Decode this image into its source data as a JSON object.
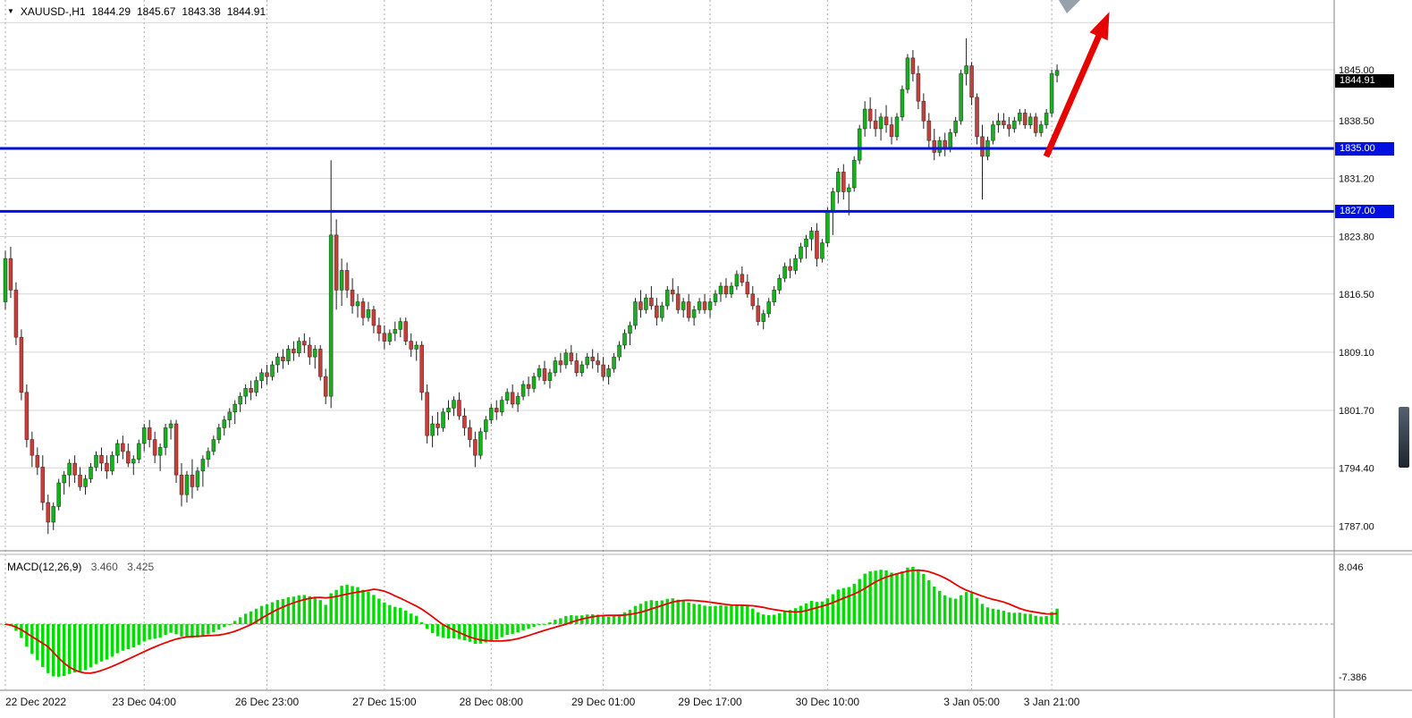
{
  "colors": {
    "up": "#17b01e",
    "down": "#c5403a",
    "wick": "#1f1f1f",
    "grid_h": "#d6d6d6",
    "grid_v": "#a9a9a9",
    "hline": "#0010e0",
    "arrow": "#e60400",
    "macd_hist": "#00dc00",
    "macd_signal": "#e60400",
    "axis_text": "#111111",
    "border": "#808080"
  },
  "header": {
    "dropdown_icon": "▼",
    "symbol": "XAUUSD-,H1",
    "open": "1844.29",
    "high": "1845.67",
    "low": "1843.38",
    "close": "1844.91"
  },
  "price_axis": {
    "labels": [
      "1845.00",
      "1838.50",
      "1831.20",
      "1823.80",
      "1816.50",
      "1809.10",
      "1801.70",
      "1794.40",
      "1787.00"
    ],
    "current": "1844.91"
  },
  "hlines": [
    {
      "price": 1835.0,
      "label": "1835.00"
    },
    {
      "price": 1827.0,
      "label": "1827.00"
    }
  ],
  "time_axis": {
    "labels": [
      "22 Dec 2022",
      "23 Dec 04:00",
      "26 Dec 23:00",
      "27 Dec 15:00",
      "28 Dec 08:00",
      "29 Dec 01:00",
      "29 Dec 17:00",
      "30 Dec 10:00",
      "3 Jan 05:00",
      "3 Jan 21:00"
    ],
    "tick_indices": [
      0,
      26,
      49,
      71,
      91,
      112,
      132,
      154,
      181,
      196
    ]
  },
  "macd_panel": {
    "title": "MACD(12,26,9)",
    "main_value": "3.460",
    "signal_value": "3.425",
    "axis_top": "8.046",
    "axis_bottom": "-7.386",
    "params": [
      12,
      26,
      9
    ]
  },
  "chart_data": {
    "type": "candlestick",
    "symbol": "XAUUSD",
    "timeframe": "H1",
    "ylim": [
      1784.0,
      1852.5
    ],
    "grid": true,
    "price_grid": [
      1851.0,
      1845.0,
      1838.5,
      1831.2,
      1823.8,
      1816.5,
      1809.1,
      1801.7,
      1794.4,
      1787.0
    ],
    "indicator": {
      "name": "MACD",
      "params": [
        12,
        26,
        9
      ],
      "main": 3.46,
      "signal": 3.425,
      "range": [
        -7.386,
        8.046
      ]
    },
    "annotations": {
      "arrow": {
        "type": "arrow-up",
        "color": "#e60400",
        "from": [
          1170,
          175
        ],
        "to": [
          1235,
          26
        ]
      },
      "support_resistance": [
        1835.0,
        1827.0
      ]
    },
    "candles": [
      [
        1815.5,
        1822.0,
        1814.5,
        1821.0
      ],
      [
        1821.0,
        1822.5,
        1816.0,
        1817.0
      ],
      [
        1817.0,
        1818.0,
        1810.0,
        1811.0
      ],
      [
        1811.0,
        1812.0,
        1803.0,
        1804.0
      ],
      [
        1804.0,
        1805.0,
        1797.0,
        1798.0
      ],
      [
        1798.0,
        1799.0,
        1794.5,
        1796.0
      ],
      [
        1796.0,
        1797.0,
        1793.5,
        1794.5
      ],
      [
        1794.5,
        1796.0,
        1789.0,
        1790.0
      ],
      [
        1790.0,
        1791.0,
        1786.0,
        1787.5
      ],
      [
        1787.5,
        1790.0,
        1786.5,
        1789.5
      ],
      [
        1789.5,
        1793.0,
        1789.0,
        1792.5
      ],
      [
        1792.5,
        1794.0,
        1791.0,
        1793.5
      ],
      [
        1793.5,
        1795.5,
        1792.0,
        1795.0
      ],
      [
        1795.0,
        1796.0,
        1792.5,
        1793.5
      ],
      [
        1793.5,
        1794.5,
        1791.5,
        1792.0
      ],
      [
        1792.0,
        1793.5,
        1791.0,
        1793.0
      ],
      [
        1793.0,
        1795.0,
        1792.5,
        1794.5
      ],
      [
        1794.5,
        1796.5,
        1794.0,
        1796.0
      ],
      [
        1796.0,
        1797.0,
        1794.0,
        1795.0
      ],
      [
        1795.0,
        1796.0,
        1793.0,
        1794.0
      ],
      [
        1794.0,
        1796.5,
        1793.5,
        1796.0
      ],
      [
        1796.0,
        1798.0,
        1795.0,
        1797.5
      ],
      [
        1797.5,
        1798.5,
        1795.5,
        1796.5
      ],
      [
        1796.5,
        1797.5,
        1794.5,
        1795.0
      ],
      [
        1795.0,
        1796.0,
        1793.5,
        1795.5
      ],
      [
        1795.5,
        1798.0,
        1795.0,
        1797.5
      ],
      [
        1797.5,
        1800.0,
        1796.5,
        1799.5
      ],
      [
        1799.5,
        1800.5,
        1797.0,
        1798.0
      ],
      [
        1798.0,
        1799.0,
        1795.0,
        1796.0
      ],
      [
        1796.0,
        1797.5,
        1794.0,
        1797.0
      ],
      [
        1797.0,
        1800.0,
        1796.0,
        1799.5
      ],
      [
        1799.5,
        1800.5,
        1798.0,
        1800.0
      ],
      [
        1800.0,
        1800.5,
        1792.5,
        1793.5
      ],
      [
        1793.5,
        1795.0,
        1789.5,
        1791.0
      ],
      [
        1791.0,
        1794.0,
        1790.0,
        1793.5
      ],
      [
        1793.5,
        1795.5,
        1790.5,
        1792.0
      ],
      [
        1792.0,
        1794.5,
        1791.5,
        1794.0
      ],
      [
        1794.0,
        1796.0,
        1792.0,
        1795.5
      ],
      [
        1795.5,
        1797.0,
        1794.5,
        1796.5
      ],
      [
        1796.5,
        1798.5,
        1796.0,
        1798.0
      ],
      [
        1798.0,
        1800.0,
        1797.5,
        1799.5
      ],
      [
        1799.5,
        1801.0,
        1798.5,
        1800.5
      ],
      [
        1800.5,
        1802.0,
        1799.5,
        1801.5
      ],
      [
        1801.5,
        1803.0,
        1800.0,
        1802.5
      ],
      [
        1802.5,
        1804.0,
        1801.5,
        1803.5
      ],
      [
        1803.5,
        1805.0,
        1802.5,
        1804.5
      ],
      [
        1804.5,
        1805.5,
        1803.0,
        1804.0
      ],
      [
        1804.0,
        1806.0,
        1803.5,
        1805.5
      ],
      [
        1805.5,
        1807.0,
        1804.5,
        1806.5
      ],
      [
        1806.5,
        1807.5,
        1805.0,
        1806.0
      ],
      [
        1806.0,
        1808.0,
        1805.5,
        1807.5
      ],
      [
        1807.5,
        1809.0,
        1806.5,
        1808.5
      ],
      [
        1808.5,
        1809.5,
        1807.0,
        1808.0
      ],
      [
        1808.0,
        1810.0,
        1807.5,
        1809.5
      ],
      [
        1809.5,
        1810.5,
        1808.0,
        1809.0
      ],
      [
        1809.0,
        1811.0,
        1808.5,
        1810.5
      ],
      [
        1810.5,
        1811.5,
        1809.0,
        1810.0
      ],
      [
        1810.0,
        1811.0,
        1807.5,
        1808.5
      ],
      [
        1808.5,
        1810.0,
        1807.0,
        1809.5
      ],
      [
        1809.5,
        1810.0,
        1805.5,
        1806.0
      ],
      [
        1806.0,
        1807.0,
        1802.5,
        1803.5
      ],
      [
        1803.5,
        1833.5,
        1802.0,
        1824.0
      ],
      [
        1824.0,
        1826.0,
        1814.5,
        1817.0
      ],
      [
        1817.0,
        1821.0,
        1815.0,
        1819.5
      ],
      [
        1819.5,
        1820.5,
        1816.0,
        1817.0
      ],
      [
        1817.0,
        1818.5,
        1814.0,
        1815.0
      ],
      [
        1815.0,
        1816.5,
        1813.5,
        1815.5
      ],
      [
        1815.5,
        1816.0,
        1812.5,
        1813.5
      ],
      [
        1813.5,
        1815.5,
        1813.0,
        1814.5
      ],
      [
        1814.5,
        1815.0,
        1811.5,
        1812.5
      ],
      [
        1812.5,
        1813.5,
        1810.5,
        1811.5
      ],
      [
        1811.5,
        1812.5,
        1809.5,
        1810.5
      ],
      [
        1810.5,
        1812.0,
        1810.0,
        1811.5
      ],
      [
        1811.5,
        1813.0,
        1810.5,
        1812.0
      ],
      [
        1812.0,
        1813.5,
        1811.0,
        1813.0
      ],
      [
        1813.0,
        1813.5,
        1810.0,
        1810.5
      ],
      [
        1810.5,
        1811.5,
        1808.5,
        1809.5
      ],
      [
        1809.5,
        1810.5,
        1808.0,
        1810.0
      ],
      [
        1810.0,
        1810.5,
        1803.0,
        1804.0
      ],
      [
        1804.0,
        1805.0,
        1797.5,
        1798.5
      ],
      [
        1798.5,
        1801.0,
        1797.0,
        1800.0
      ],
      [
        1800.0,
        1801.5,
        1798.5,
        1799.5
      ],
      [
        1799.5,
        1802.0,
        1799.0,
        1801.5
      ],
      [
        1801.5,
        1803.0,
        1800.5,
        1802.0
      ],
      [
        1802.0,
        1803.5,
        1801.0,
        1803.0
      ],
      [
        1803.0,
        1804.0,
        1800.5,
        1801.0
      ],
      [
        1801.0,
        1802.0,
        1798.5,
        1799.5
      ],
      [
        1799.5,
        1800.5,
        1797.0,
        1798.0
      ],
      [
        1798.0,
        1799.0,
        1794.5,
        1796.0
      ],
      [
        1796.0,
        1799.5,
        1795.5,
        1799.0
      ],
      [
        1799.0,
        1801.0,
        1798.0,
        1800.5
      ],
      [
        1800.5,
        1802.5,
        1800.0,
        1802.0
      ],
      [
        1802.0,
        1803.0,
        1800.5,
        1801.5
      ],
      [
        1801.5,
        1803.5,
        1801.0,
        1803.0
      ],
      [
        1803.0,
        1804.5,
        1802.5,
        1804.0
      ],
      [
        1804.0,
        1805.0,
        1802.0,
        1802.5
      ],
      [
        1802.5,
        1804.0,
        1801.5,
        1803.5
      ],
      [
        1803.5,
        1805.5,
        1803.0,
        1805.0
      ],
      [
        1805.0,
        1806.0,
        1803.5,
        1804.5
      ],
      [
        1804.5,
        1806.5,
        1804.0,
        1806.0
      ],
      [
        1806.0,
        1807.5,
        1805.5,
        1807.0
      ],
      [
        1807.0,
        1808.0,
        1805.0,
        1805.5
      ],
      [
        1805.5,
        1807.0,
        1804.5,
        1806.5
      ],
      [
        1806.5,
        1808.5,
        1806.0,
        1808.0
      ],
      [
        1808.0,
        1809.0,
        1806.5,
        1807.5
      ],
      [
        1807.5,
        1809.5,
        1807.0,
        1809.0
      ],
      [
        1809.0,
        1810.0,
        1807.5,
        1808.0
      ],
      [
        1808.0,
        1809.0,
        1806.0,
        1806.5
      ],
      [
        1806.5,
        1808.0,
        1806.0,
        1807.5
      ],
      [
        1807.5,
        1809.0,
        1807.0,
        1808.5
      ],
      [
        1808.5,
        1809.5,
        1807.0,
        1808.0
      ],
      [
        1808.0,
        1809.0,
        1806.5,
        1807.5
      ],
      [
        1807.5,
        1808.5,
        1805.5,
        1806.0
      ],
      [
        1806.0,
        1807.5,
        1805.0,
        1807.0
      ],
      [
        1807.0,
        1809.0,
        1806.5,
        1808.5
      ],
      [
        1808.5,
        1810.5,
        1808.0,
        1810.0
      ],
      [
        1810.0,
        1812.0,
        1809.5,
        1811.5
      ],
      [
        1811.5,
        1813.0,
        1810.0,
        1812.5
      ],
      [
        1812.5,
        1816.0,
        1812.0,
        1815.5
      ],
      [
        1815.5,
        1817.0,
        1813.5,
        1814.5
      ],
      [
        1814.5,
        1816.5,
        1814.0,
        1816.0
      ],
      [
        1816.0,
        1817.5,
        1814.5,
        1815.0
      ],
      [
        1815.0,
        1816.0,
        1812.5,
        1813.5
      ],
      [
        1813.5,
        1815.5,
        1813.0,
        1815.0
      ],
      [
        1815.0,
        1817.5,
        1814.5,
        1817.0
      ],
      [
        1817.0,
        1818.5,
        1815.5,
        1816.5
      ],
      [
        1816.5,
        1817.5,
        1814.0,
        1814.5
      ],
      [
        1814.5,
        1816.0,
        1813.5,
        1815.5
      ],
      [
        1815.5,
        1816.5,
        1813.0,
        1813.5
      ],
      [
        1813.5,
        1815.0,
        1812.5,
        1814.5
      ],
      [
        1814.5,
        1816.0,
        1814.0,
        1815.5
      ],
      [
        1815.5,
        1816.5,
        1814.0,
        1814.5
      ],
      [
        1814.5,
        1816.0,
        1813.5,
        1815.5
      ],
      [
        1815.5,
        1817.0,
        1815.0,
        1816.5
      ],
      [
        1816.5,
        1818.0,
        1815.5,
        1817.5
      ],
      [
        1817.5,
        1818.5,
        1816.0,
        1816.5
      ],
      [
        1816.5,
        1818.0,
        1816.0,
        1817.5
      ],
      [
        1817.5,
        1819.5,
        1817.0,
        1819.0
      ],
      [
        1819.0,
        1820.0,
        1817.5,
        1818.0
      ],
      [
        1818.0,
        1819.0,
        1816.0,
        1816.5
      ],
      [
        1816.5,
        1817.5,
        1814.5,
        1815.0
      ],
      [
        1815.0,
        1816.0,
        1812.5,
        1813.0
      ],
      [
        1813.0,
        1814.5,
        1812.0,
        1814.0
      ],
      [
        1814.0,
        1816.0,
        1813.5,
        1815.5
      ],
      [
        1815.5,
        1817.5,
        1815.0,
        1817.0
      ],
      [
        1817.0,
        1819.0,
        1816.5,
        1818.5
      ],
      [
        1818.5,
        1820.5,
        1818.0,
        1820.0
      ],
      [
        1820.0,
        1821.0,
        1818.5,
        1819.5
      ],
      [
        1819.5,
        1821.5,
        1819.0,
        1821.0
      ],
      [
        1821.0,
        1823.0,
        1820.5,
        1822.5
      ],
      [
        1822.5,
        1824.0,
        1821.0,
        1823.5
      ],
      [
        1823.5,
        1825.0,
        1822.0,
        1824.5
      ],
      [
        1824.5,
        1825.5,
        1820.0,
        1821.0
      ],
      [
        1821.0,
        1823.5,
        1820.5,
        1823.0
      ],
      [
        1823.0,
        1827.5,
        1822.5,
        1827.0
      ],
      [
        1827.0,
        1830.0,
        1824.0,
        1829.5
      ],
      [
        1829.5,
        1832.5,
        1828.0,
        1832.0
      ],
      [
        1832.0,
        1833.0,
        1828.5,
        1829.5
      ],
      [
        1829.5,
        1830.5,
        1826.5,
        1830.0
      ],
      [
        1830.0,
        1834.0,
        1829.5,
        1833.5
      ],
      [
        1833.5,
        1838.0,
        1833.0,
        1837.5
      ],
      [
        1837.5,
        1841.0,
        1836.5,
        1840.0
      ],
      [
        1840.0,
        1841.5,
        1837.5,
        1838.5
      ],
      [
        1838.5,
        1840.0,
        1836.5,
        1837.5
      ],
      [
        1837.5,
        1839.5,
        1836.0,
        1839.0
      ],
      [
        1839.0,
        1840.5,
        1837.0,
        1838.0
      ],
      [
        1838.0,
        1839.0,
        1835.5,
        1836.5
      ],
      [
        1836.5,
        1839.5,
        1836.0,
        1839.0
      ],
      [
        1839.0,
        1843.0,
        1838.5,
        1842.5
      ],
      [
        1842.5,
        1847.0,
        1842.0,
        1846.5
      ],
      [
        1846.5,
        1847.5,
        1843.5,
        1844.5
      ],
      [
        1844.5,
        1845.5,
        1840.0,
        1841.0
      ],
      [
        1841.0,
        1842.0,
        1837.5,
        1838.5
      ],
      [
        1838.5,
        1839.5,
        1835.0,
        1836.0
      ],
      [
        1836.0,
        1837.5,
        1833.5,
        1834.5
      ],
      [
        1834.5,
        1836.5,
        1834.0,
        1836.0
      ],
      [
        1836.0,
        1837.0,
        1834.0,
        1835.0
      ],
      [
        1835.0,
        1837.5,
        1834.5,
        1837.0
      ],
      [
        1837.0,
        1839.0,
        1836.5,
        1838.5
      ],
      [
        1838.5,
        1845.0,
        1838.0,
        1844.5
      ],
      [
        1844.5,
        1849.0,
        1843.0,
        1845.5
      ],
      [
        1845.5,
        1846.0,
        1840.5,
        1841.5
      ],
      [
        1841.5,
        1842.0,
        1835.5,
        1836.5
      ],
      [
        1836.5,
        1838.0,
        1828.5,
        1834.0
      ],
      [
        1834.0,
        1836.5,
        1833.5,
        1836.0
      ],
      [
        1836.0,
        1838.5,
        1835.5,
        1838.0
      ],
      [
        1838.0,
        1839.5,
        1837.0,
        1838.5
      ],
      [
        1838.5,
        1839.5,
        1837.5,
        1838.0
      ],
      [
        1838.0,
        1839.0,
        1836.5,
        1837.5
      ],
      [
        1837.5,
        1839.0,
        1837.0,
        1838.5
      ],
      [
        1838.5,
        1840.0,
        1838.0,
        1839.5
      ],
      [
        1839.5,
        1840.0,
        1837.5,
        1838.0
      ],
      [
        1838.0,
        1839.5,
        1837.5,
        1839.0
      ],
      [
        1839.0,
        1839.5,
        1836.5,
        1837.0
      ],
      [
        1837.0,
        1838.5,
        1836.5,
        1838.0
      ],
      [
        1838.0,
        1840.0,
        1837.5,
        1839.5
      ],
      [
        1839.5,
        1845.0,
        1839.0,
        1844.5
      ],
      [
        1844.29,
        1845.67,
        1843.38,
        1844.91
      ]
    ]
  }
}
